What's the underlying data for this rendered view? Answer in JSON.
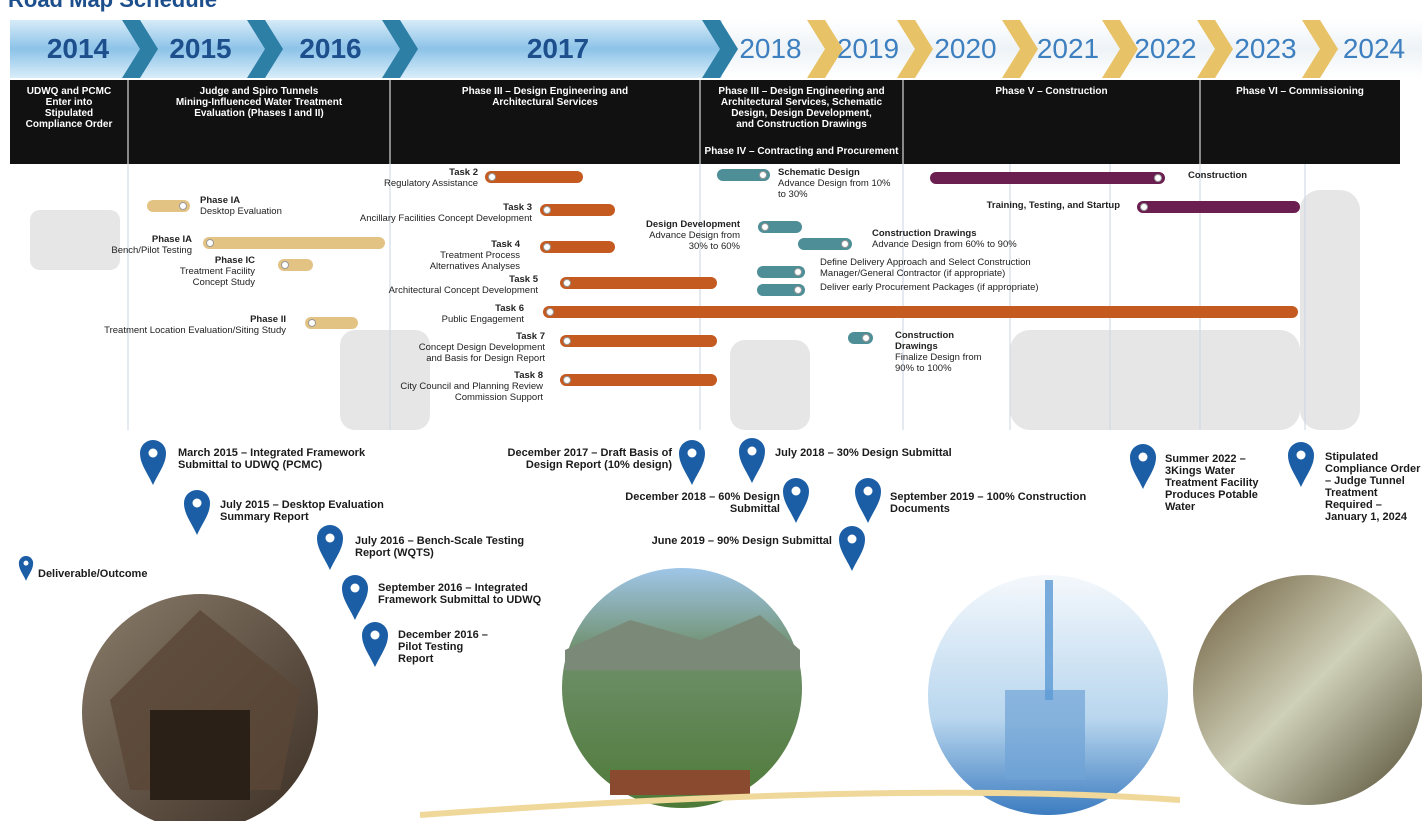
{
  "title": "Road Map Schedule",
  "years": [
    "2014",
    "2015",
    "2016",
    "2017",
    "2018",
    "2019",
    "2020",
    "2021",
    "2022",
    "2023",
    "2024"
  ],
  "phases": [
    {
      "lines": [
        "UDWQ and PCMC",
        "Enter into",
        "Stipulated",
        "Compliance Order"
      ]
    },
    {
      "lines": [
        "Judge and Spiro Tunnels",
        "Mining-Influenced Water Treatment",
        "Evaluation (Phases I and II)"
      ]
    },
    {
      "lines": [
        "Phase III – Design Engineering and",
        "Architectural Services"
      ]
    },
    {
      "lines": [
        "Phase III – Design Engineering and",
        "Architectural Services, Schematic",
        "Design, Design Development,",
        "and Construction Drawings"
      ],
      "sub": [
        "Phase IV – Contracting and Procurement"
      ]
    },
    {
      "lines": [
        "Phase V – Construction"
      ]
    },
    {
      "lines": [
        "Phase VI – Commissioning"
      ]
    }
  ],
  "bars": [
    {
      "title": [
        "Phase IA"
      ],
      "detail": [
        "Desktop Evaluation"
      ]
    },
    {
      "title": [
        "Phase IA"
      ],
      "detail": [
        "Bench/Pilot Testing"
      ]
    },
    {
      "title": [
        "Phase IC"
      ],
      "detail": [
        "Treatment Facility",
        "Concept Study"
      ]
    },
    {
      "title": [
        "Phase II"
      ],
      "detail": [
        "Treatment Location Evaluation/Siting Study"
      ]
    },
    {
      "title": [
        "Task 2"
      ],
      "detail": [
        "Regulatory Assistance"
      ]
    },
    {
      "title": [
        "Task 3"
      ],
      "detail": [
        "Ancillary Facilities Concept Development"
      ]
    },
    {
      "title": [
        "Task 4"
      ],
      "detail": [
        "Treatment Process",
        "Alternatives Analyses"
      ]
    },
    {
      "title": [
        "Task 5"
      ],
      "detail": [
        "Architectural Concept Development"
      ]
    },
    {
      "title": [
        "Task 6"
      ],
      "detail": [
        "Public Engagement"
      ]
    },
    {
      "title": [
        "Task 7"
      ],
      "detail": [
        "Concept Design Development",
        "and Basis for Design Report"
      ]
    },
    {
      "title": [
        "Task 8"
      ],
      "detail": [
        "City Council and Planning Review",
        "Commission Support"
      ]
    },
    {
      "title": [
        "Schematic Design"
      ],
      "detail": [
        "Advance Design from 10%",
        "to 30%"
      ]
    },
    {
      "title": [
        "Design Development"
      ],
      "detail": [
        "Advance Design from",
        "30% to 60%"
      ]
    },
    {
      "title": [
        "Construction Drawings"
      ],
      "detail": [
        "Advance Design from 60% to 90%"
      ]
    },
    {
      "detail": [
        "Define Delivery Approach and Select Construction",
        "Manager/General Contractor (if appropriate)"
      ]
    },
    {
      "detail": [
        "Deliver early Procurement Packages (if appropriate)"
      ]
    },
    {
      "title": [
        "Construction",
        "Drawings"
      ],
      "detail": [
        "Finalize Design from",
        "90% to 100%"
      ]
    },
    {
      "title": [
        "Construction"
      ]
    },
    {
      "title": [
        "Training, Testing, and Startup"
      ]
    }
  ],
  "milestones": [
    {
      "lines": [
        "March 2015 – Integrated Framework",
        "Submittal to UDWQ (PCMC)"
      ]
    },
    {
      "lines": [
        "July 2015 – Desktop Evaluation",
        "Summary Report"
      ]
    },
    {
      "lines": [
        "July 2016 – Bench-Scale Testing",
        "Report (WQTS)"
      ]
    },
    {
      "lines": [
        "September 2016 – Integrated",
        "Framework Submittal to UDWQ"
      ]
    },
    {
      "lines": [
        "December 2016 –",
        "Pilot Testing",
        "Report"
      ]
    },
    {
      "lines": [
        "December 2017 – Draft Basis of",
        "Design Report (10% design)"
      ]
    },
    {
      "lines": [
        "July 2018 – 30% Design Submittal"
      ]
    },
    {
      "lines": [
        "December 2018 – 60% Design",
        "Submittal"
      ]
    },
    {
      "lines": [
        "June 2019 – 90% Design Submittal"
      ]
    },
    {
      "lines": [
        "September 2019 – 100% Construction",
        "Documents"
      ]
    },
    {
      "lines": [
        "Summer 2022 –",
        "3Kings Water",
        "Treatment Facility",
        "Produces Potable",
        "Water"
      ]
    },
    {
      "lines": [
        "Stipulated",
        "Compliance Order",
        "– Judge Tunnel",
        "Treatment",
        "Required –",
        "January 1, 2024"
      ]
    }
  ],
  "legend": "Deliverable/Outcome"
}
